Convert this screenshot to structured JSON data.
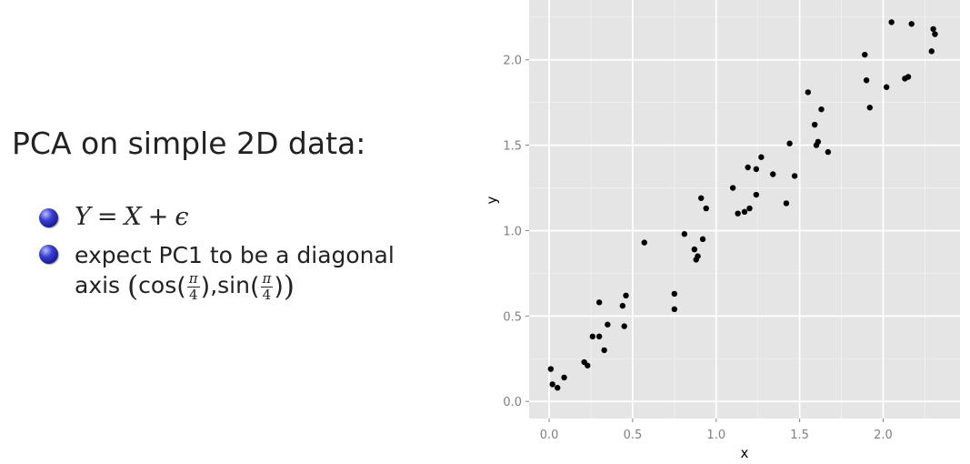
{
  "slide": {
    "title": "PCA on simple 2D data:",
    "bullets": [
      {
        "math": {
          "lhs": "Y",
          "eq": "=",
          "x": "X",
          "plus": "+",
          "eps": "ϵ"
        }
      },
      {
        "line1": "expect PC1 to be a diagonal",
        "line2_prefix": "axis",
        "cos": "cos",
        "sin": "sin",
        "pi": "π",
        "four": "4",
        "comma": ","
      }
    ]
  },
  "chart_data": {
    "type": "scatter",
    "title": "",
    "xlabel": "x",
    "ylabel": "y",
    "xlim": [
      -0.12,
      2.46
    ],
    "ylim": [
      -0.1,
      2.35
    ],
    "xticks": [
      0.0,
      0.5,
      1.0,
      1.5,
      2.0
    ],
    "xtick_labels": [
      "0.0",
      "0.5",
      "1.0",
      "1.5",
      "2.0"
    ],
    "yticks": [
      0.0,
      0.5,
      1.0,
      1.5,
      2.0
    ],
    "ytick_labels": [
      "0.0",
      "0.5",
      "1.0",
      "1.5",
      "2.0"
    ],
    "grid": true,
    "panel_color": "#e5e5e5",
    "point_color": "#000000",
    "points": [
      {
        "x": 0.01,
        "y": 0.19
      },
      {
        "x": 0.02,
        "y": 0.1
      },
      {
        "x": 0.05,
        "y": 0.08
      },
      {
        "x": 0.09,
        "y": 0.14
      },
      {
        "x": 0.21,
        "y": 0.23
      },
      {
        "x": 0.23,
        "y": 0.21
      },
      {
        "x": 0.26,
        "y": 0.38
      },
      {
        "x": 0.3,
        "y": 0.58
      },
      {
        "x": 0.3,
        "y": 0.38
      },
      {
        "x": 0.33,
        "y": 0.3
      },
      {
        "x": 0.35,
        "y": 0.45
      },
      {
        "x": 0.44,
        "y": 0.56
      },
      {
        "x": 0.45,
        "y": 0.44
      },
      {
        "x": 0.46,
        "y": 0.62
      },
      {
        "x": 0.57,
        "y": 0.93
      },
      {
        "x": 0.75,
        "y": 0.63
      },
      {
        "x": 0.75,
        "y": 0.54
      },
      {
        "x": 0.81,
        "y": 0.98
      },
      {
        "x": 0.87,
        "y": 0.89
      },
      {
        "x": 0.88,
        "y": 0.83
      },
      {
        "x": 0.89,
        "y": 0.85
      },
      {
        "x": 0.91,
        "y": 1.19
      },
      {
        "x": 0.92,
        "y": 0.95
      },
      {
        "x": 0.94,
        "y": 1.13
      },
      {
        "x": 1.1,
        "y": 1.25
      },
      {
        "x": 1.13,
        "y": 1.1
      },
      {
        "x": 1.17,
        "y": 1.11
      },
      {
        "x": 1.19,
        "y": 1.37
      },
      {
        "x": 1.2,
        "y": 1.13
      },
      {
        "x": 1.24,
        "y": 1.36
      },
      {
        "x": 1.24,
        "y": 1.21
      },
      {
        "x": 1.27,
        "y": 1.43
      },
      {
        "x": 1.34,
        "y": 1.33
      },
      {
        "x": 1.42,
        "y": 1.16
      },
      {
        "x": 1.44,
        "y": 1.51
      },
      {
        "x": 1.47,
        "y": 1.32
      },
      {
        "x": 1.55,
        "y": 1.81
      },
      {
        "x": 1.59,
        "y": 1.62
      },
      {
        "x": 1.6,
        "y": 1.5
      },
      {
        "x": 1.61,
        "y": 1.52
      },
      {
        "x": 1.63,
        "y": 1.71
      },
      {
        "x": 1.67,
        "y": 1.46
      },
      {
        "x": 1.89,
        "y": 2.03
      },
      {
        "x": 1.9,
        "y": 1.88
      },
      {
        "x": 1.92,
        "y": 1.72
      },
      {
        "x": 2.02,
        "y": 1.84
      },
      {
        "x": 2.05,
        "y": 2.22
      },
      {
        "x": 2.13,
        "y": 1.89
      },
      {
        "x": 2.15,
        "y": 1.9
      },
      {
        "x": 2.17,
        "y": 2.21
      },
      {
        "x": 2.29,
        "y": 2.05
      },
      {
        "x": 2.3,
        "y": 2.18
      },
      {
        "x": 2.31,
        "y": 2.15
      }
    ]
  }
}
